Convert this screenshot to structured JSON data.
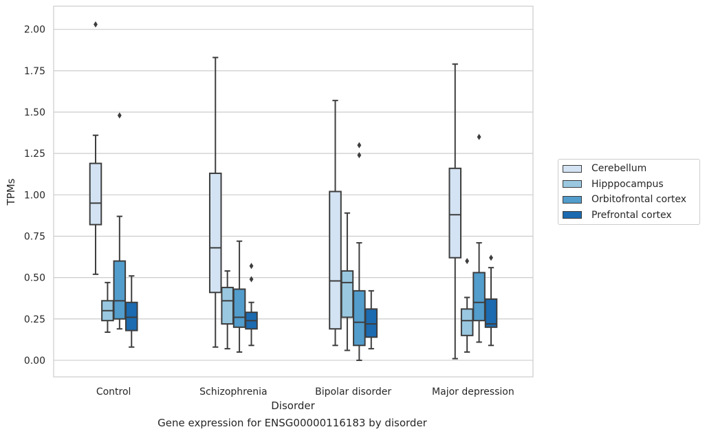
{
  "chart_data": {
    "type": "box",
    "title": "Gene expression for ENSG00000116183 by disorder",
    "xlabel": "Disorder",
    "ylabel": "TPMs",
    "ylim": [
      -0.1,
      2.14
    ],
    "yticks": [
      "0.00",
      "0.25",
      "0.50",
      "0.75",
      "1.00",
      "1.25",
      "1.50",
      "1.75",
      "2.00"
    ],
    "grid": true,
    "legend_position": "right",
    "categories": [
      "Control",
      "Schizophrenia",
      "Bipolar disorder",
      "Major depression"
    ],
    "series": [
      {
        "name": "Cerebellum",
        "color": "#d3e3f3",
        "boxes": [
          {
            "min": 0.52,
            "q1": 0.82,
            "median": 0.95,
            "q3": 1.19,
            "max": 1.36,
            "outliers": [
              2.03
            ]
          },
          {
            "min": 0.08,
            "q1": 0.41,
            "median": 0.68,
            "q3": 1.13,
            "max": 1.83,
            "outliers": []
          },
          {
            "min": 0.09,
            "q1": 0.19,
            "median": 0.48,
            "q3": 1.02,
            "max": 1.57,
            "outliers": []
          },
          {
            "min": 0.01,
            "q1": 0.62,
            "median": 0.88,
            "q3": 1.16,
            "max": 1.79,
            "outliers": []
          }
        ]
      },
      {
        "name": "Hipppocampus",
        "color": "#9ac8e0",
        "boxes": [
          {
            "min": 0.17,
            "q1": 0.24,
            "median": 0.3,
            "q3": 0.36,
            "max": 0.47,
            "outliers": []
          },
          {
            "min": 0.07,
            "q1": 0.22,
            "median": 0.36,
            "q3": 0.44,
            "max": 0.54,
            "outliers": []
          },
          {
            "min": 0.06,
            "q1": 0.26,
            "median": 0.47,
            "q3": 0.54,
            "max": 0.89,
            "outliers": []
          },
          {
            "min": 0.05,
            "q1": 0.15,
            "median": 0.24,
            "q3": 0.31,
            "max": 0.38,
            "outliers": [
              0.6
            ]
          }
        ]
      },
      {
        "name": "Orbitofrontal cortex",
        "color": "#529dcc",
        "boxes": [
          {
            "min": 0.19,
            "q1": 0.25,
            "median": 0.36,
            "q3": 0.6,
            "max": 0.87,
            "outliers": [
              1.48
            ]
          },
          {
            "min": 0.05,
            "q1": 0.2,
            "median": 0.26,
            "q3": 0.43,
            "max": 0.72,
            "outliers": []
          },
          {
            "min": 0.0,
            "q1": 0.09,
            "median": 0.23,
            "q3": 0.42,
            "max": 0.71,
            "outliers": [
              1.24,
              1.3
            ]
          },
          {
            "min": 0.11,
            "q1": 0.24,
            "median": 0.35,
            "q3": 0.53,
            "max": 0.71,
            "outliers": [
              1.35
            ]
          }
        ]
      },
      {
        "name": "Prefrontal cortex",
        "color": "#1c6aaf",
        "boxes": [
          {
            "min": 0.08,
            "q1": 0.18,
            "median": 0.26,
            "q3": 0.35,
            "max": 0.51,
            "outliers": []
          },
          {
            "min": 0.09,
            "q1": 0.19,
            "median": 0.24,
            "q3": 0.29,
            "max": 0.35,
            "outliers": [
              0.49,
              0.57
            ]
          },
          {
            "min": 0.07,
            "q1": 0.14,
            "median": 0.22,
            "q3": 0.31,
            "max": 0.42,
            "outliers": []
          },
          {
            "min": 0.09,
            "q1": 0.2,
            "median": 0.22,
            "q3": 0.37,
            "max": 0.56,
            "outliers": [
              0.62
            ]
          }
        ]
      }
    ]
  }
}
